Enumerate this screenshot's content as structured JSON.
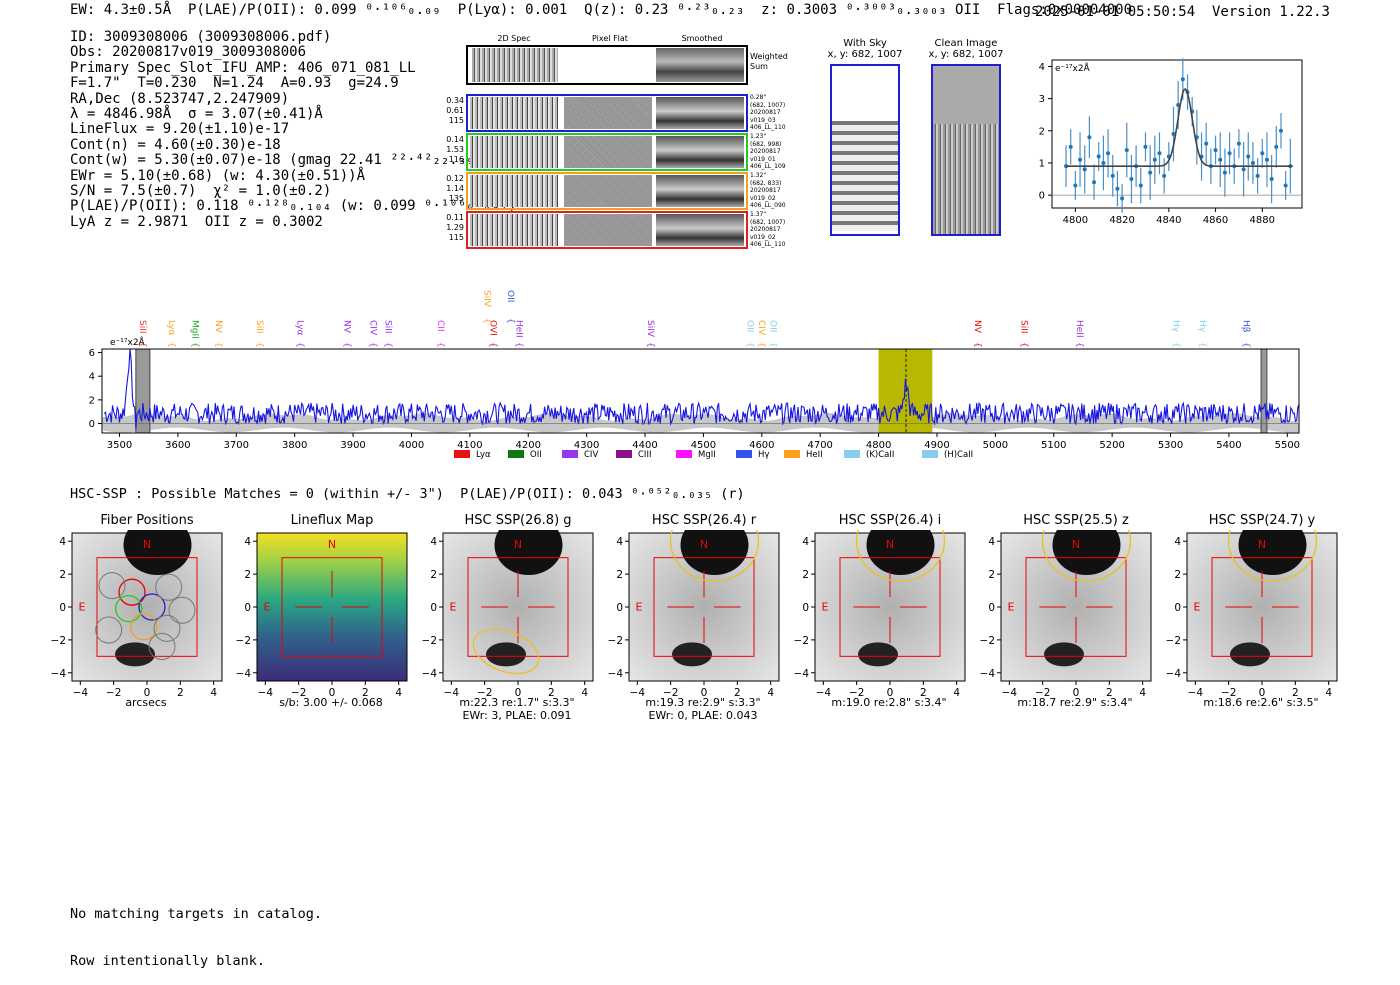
{
  "header": {
    "left": "EW: 4.3±0.5Å  P(LAE)/P(OII): 0.099 ⁰·¹⁰⁶₀.₀₉  P(Lyα): 0.001  Q(z): 0.23 ⁰·²³₀.₂₃  z: 0.3003 ⁰·³⁰⁰³₀.₃₀₀₃ OII  Flags:0x00004000",
    "right": "2025-01-01 05:50:54  Version 1.22.3"
  },
  "info_lines": [
    "ID: 3009308006 (3009308006.pdf)",
    "Obs: 20200817v019_3009308006",
    "Primary Spec_Slot_IFU_AMP: 406_071_081_LL",
    "F=1.7\"  T=0.230  N=1.24  A=0.93  g=24.9",
    "RA,Dec (8.523747,2.247909)",
    "λ = 4846.98Å  σ = 3.07(±0.41)Å",
    "LineFlux = 9.20(±1.10)e-17",
    "Cont(n) = 4.60(±0.30)e-18",
    "Cont(w) = 5.30(±0.07)e-18 (gmag 22.41 ²²·⁴²₂₂.₃₉)",
    "EWr = 5.10(±0.68) (w: 4.30(±0.51))Å",
    "S/N = 7.5(±0.7)  χ² = 1.0(±0.2)",
    "P(LAE)/P(OII): 0.118 ⁰·¹²⁸₀.₁₀₄ (w: 0.099 ⁰·¹⁰⁶₀.₀₉₂)",
    "LyA z = 2.9871  OII z = 0.3002"
  ],
  "thumbs": {
    "col_headers": [
      "2D Spec",
      "Pixel Flat",
      "Smoothed"
    ],
    "weighted_label": "Weighted\nSum",
    "rows": [
      {
        "left": [
          "0.34",
          "0.61",
          "115"
        ],
        "right": [
          "0.28\"",
          "(682, 1007)",
          "20200817",
          "v019_03",
          "406_LL_110"
        ],
        "color": "#1f1fd0"
      },
      {
        "left": [
          "0.14",
          "1.53",
          "116"
        ],
        "right": [
          "1.23\"",
          "(682, 998)",
          "20200817",
          "v019_01",
          "406_LL_109"
        ],
        "color": "#22cc22"
      },
      {
        "left": [
          "0.12",
          "1.14",
          "135"
        ],
        "right": [
          "1.32\"",
          "(682, 833)",
          "20200817",
          "v019_02",
          "406_LL_090"
        ],
        "color": "#f0a020"
      },
      {
        "left": [
          "0.11",
          "1.29",
          "115"
        ],
        "right": [
          "1.37\"",
          "(682, 1007)",
          "20200817",
          "v019_02",
          "406_LL_110"
        ],
        "color": "#e02020"
      }
    ]
  },
  "sky_images": [
    {
      "title": "With Sky",
      "subtitle": "x, y: 682, 1007"
    },
    {
      "title": "Clean Image",
      "subtitle": "x, y: 682, 1007"
    }
  ],
  "zoom_plot": {
    "ylabel": "e⁻¹⁷x2Å",
    "xticks": [
      "4800",
      "4820",
      "4840",
      "4860",
      "4880"
    ],
    "yticks": [
      "0",
      "1",
      "2",
      "3",
      "4"
    ]
  },
  "spectrum": {
    "ylabel": "e⁻¹⁷x2Å",
    "xticks": [
      "3500",
      "3600",
      "3700",
      "3800",
      "3900",
      "4000",
      "4100",
      "4200",
      "4300",
      "4400",
      "4500",
      "4600",
      "4700",
      "4800",
      "4900",
      "5000",
      "5100",
      "5200",
      "5300",
      "5400",
      "5500"
    ],
    "yticks": [
      "0",
      "2",
      "4",
      "6"
    ],
    "line_labels": [
      {
        "t": "SiII",
        "x": 3530,
        "c": "#ee3333"
      },
      {
        "t": "Lyα",
        "x": 3580,
        "c": "#ff9f1c"
      },
      {
        "t": "MgII",
        "x": 3620,
        "c": "#22aa22"
      },
      {
        "t": "NV",
        "x": 3660,
        "c": "#ff9f1c"
      },
      {
        "t": "SiII",
        "x": 3730,
        "c": "#ff9f1c"
      },
      {
        "t": "Lyα",
        "x": 3800,
        "c": "#9933dd"
      },
      {
        "t": "NV",
        "x": 3880,
        "c": "#9933dd"
      },
      {
        "t": "CIV",
        "x": 3925,
        "c": "#9933dd"
      },
      {
        "t": "SiII",
        "x": 3950,
        "c": "#9933dd"
      },
      {
        "t": "CII",
        "x": 4040,
        "c": "#ee33ee"
      },
      {
        "t": "OVI",
        "x": 4130,
        "c": "#dd1111"
      },
      {
        "t": "HeII",
        "x": 4175,
        "c": "#9933dd"
      },
      {
        "t": "SiIV",
        "x": 4120,
        "c": "#ff9f1c",
        "up": true
      },
      {
        "t": "OII",
        "x": 4160,
        "c": "#3355dd",
        "up": true
      },
      {
        "t": "SiIV",
        "x": 4400,
        "c": "#9933dd"
      },
      {
        "t": "OII",
        "x": 4570,
        "c": "#88ccee"
      },
      {
        "t": "CIV",
        "x": 4590,
        "c": "#ff9f1c"
      },
      {
        "t": "OII",
        "x": 4610,
        "c": "#88ccee"
      },
      {
        "t": "NV",
        "x": 4960,
        "c": "#dd1111"
      },
      {
        "t": "SiII",
        "x": 5040,
        "c": "#dd1111"
      },
      {
        "t": "HeII",
        "x": 5135,
        "c": "#9933dd"
      },
      {
        "t": "Hγ",
        "x": 5300,
        "c": "#88ccee"
      },
      {
        "t": "Hγ",
        "x": 5345,
        "c": "#88ccee"
      },
      {
        "t": "Hβ",
        "x": 5420,
        "c": "#3355dd"
      }
    ],
    "legend": [
      {
        "label": "Lyα",
        "color": "#ee1111"
      },
      {
        "label": "OII",
        "color": "#117711"
      },
      {
        "label": "CIV",
        "color": "#9933ee"
      },
      {
        "label": "CIII",
        "color": "#881188"
      },
      {
        "label": "MgII",
        "color": "#ff11ff"
      },
      {
        "label": "Hγ",
        "color": "#3355ee"
      },
      {
        "label": "HeII",
        "color": "#ff9f1c"
      },
      {
        "label": "(K)CaII",
        "color": "#88ccee"
      },
      {
        "label": "(H)CaII",
        "color": "#88ccee"
      }
    ]
  },
  "chart_data": {
    "type": "line",
    "title": "",
    "xlabel": "",
    "ylabel": "e-17x2Å",
    "xlim": [
      3470,
      5520
    ],
    "ylim": [
      -0.8,
      6.3
    ],
    "highlight_band": [
      4800,
      4892
    ],
    "highlight_center": 4847,
    "peaks": [
      {
        "x": 3517,
        "y": 5.7
      },
      {
        "x": 4847,
        "y": 3.3
      }
    ],
    "noise_level": 0.6,
    "zoom": {
      "type": "scatter",
      "xlim": [
        4790,
        4897
      ],
      "ylim": [
        -0.4,
        4.2
      ],
      "points": [
        [
          4796,
          0.9
        ],
        [
          4798,
          1.5
        ],
        [
          4800,
          0.3
        ],
        [
          4802,
          1.1
        ],
        [
          4804,
          0.8
        ],
        [
          4806,
          1.8
        ],
        [
          4808,
          0.4
        ],
        [
          4810,
          1.2
        ],
        [
          4812,
          1.0
        ],
        [
          4814,
          1.3
        ],
        [
          4816,
          0.6
        ],
        [
          4818,
          0.2
        ],
        [
          4820,
          -0.1
        ],
        [
          4822,
          1.4
        ],
        [
          4824,
          0.5
        ],
        [
          4826,
          0.9
        ],
        [
          4828,
          0.3
        ],
        [
          4830,
          1.5
        ],
        [
          4832,
          0.7
        ],
        [
          4834,
          1.1
        ],
        [
          4836,
          1.3
        ],
        [
          4838,
          0.6
        ],
        [
          4840,
          1.2
        ],
        [
          4842,
          1.9
        ],
        [
          4844,
          2.8
        ],
        [
          4846,
          3.6
        ],
        [
          4848,
          3.2
        ],
        [
          4850,
          2.6
        ],
        [
          4852,
          1.8
        ],
        [
          4854,
          1.2
        ],
        [
          4856,
          1.6
        ],
        [
          4858,
          0.9
        ],
        [
          4860,
          1.4
        ],
        [
          4862,
          1.1
        ],
        [
          4864,
          0.7
        ],
        [
          4866,
          1.3
        ],
        [
          4868,
          0.9
        ],
        [
          4870,
          1.6
        ],
        [
          4872,
          0.8
        ],
        [
          4874,
          1.2
        ],
        [
          4876,
          1.0
        ],
        [
          4878,
          0.6
        ],
        [
          4880,
          1.3
        ],
        [
          4882,
          1.1
        ],
        [
          4884,
          0.5
        ],
        [
          4886,
          1.5
        ],
        [
          4888,
          2.0
        ],
        [
          4890,
          0.3
        ],
        [
          4892,
          0.9
        ]
      ],
      "fit": {
        "continuum": 0.9,
        "amplitude": 2.4,
        "center": 4846.98,
        "sigma": 3.07
      }
    }
  },
  "hsc_line": "HSC-SSP : Possible Matches = 0 (within +/- 3\")  P(LAE)/P(OII): 0.043 ⁰·⁰⁵²₀.₀₃₅ (r)",
  "panels": [
    {
      "title": "Fiber Positions",
      "cap": [
        "arcsecs"
      ]
    },
    {
      "title": "Lineflux Map",
      "cap": [
        "s/b: 3.00 +/- 0.068"
      ]
    },
    {
      "title": "HSC SSP(26.8) g",
      "cap": [
        "m:22.3  re:1.7\"  s:3.3\"",
        "EWr: 3, PLAE: 0.091"
      ]
    },
    {
      "title": "HSC SSP(26.4) r",
      "cap": [
        "m:19.3  re:2.9\"  s:3.3\"",
        "EWr: 0, PLAE: 0.043"
      ]
    },
    {
      "title": "HSC SSP(26.4) i",
      "cap": [
        "m:19.0  re:2.8\"  s:3.4\""
      ]
    },
    {
      "title": "HSC SSP(25.5) z",
      "cap": [
        "m:18.7  re:2.9\"  s:3.4\""
      ]
    },
    {
      "title": "HSC SSP(24.7) y",
      "cap": [
        "m:18.6  re:2.6\"  s:3.5\""
      ]
    }
  ],
  "panel_axis": {
    "ticks": [
      "−4",
      "−2",
      "0",
      "2",
      "4"
    ],
    "north": "N",
    "east": "E"
  },
  "footer": [
    "No matching targets in catalog.",
    "Row intentionally blank."
  ]
}
